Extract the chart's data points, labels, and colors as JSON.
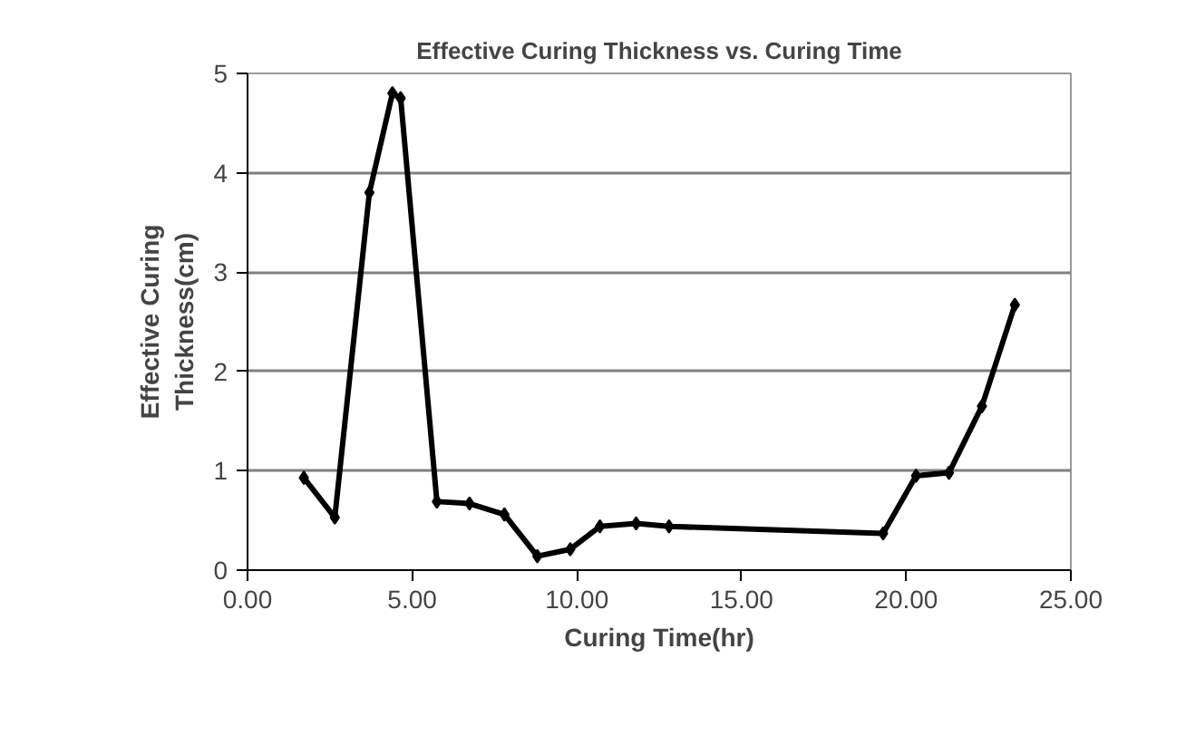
{
  "chart_data": {
    "type": "line",
    "title": "Effective Curing Thickness vs. Curing Time",
    "xlabel": "Curing Time(hr)",
    "ylabel": "Effective Curing Thickness(cm)",
    "x": [
      1.71,
      2.65,
      3.7,
      4.4,
      4.65,
      5.75,
      6.74,
      7.8,
      8.8,
      9.8,
      10.7,
      11.8,
      12.8,
      19.3,
      20.3,
      21.3,
      22.3,
      23.3
    ],
    "series": [
      {
        "color": "#000000",
        "values": [
          0.93,
          0.53,
          3.8,
          4.8,
          4.75,
          0.69,
          0.67,
          0.56,
          0.14,
          0.21,
          0.44,
          0.47,
          0.44,
          0.37,
          0.95,
          0.98,
          1.65,
          2.67
        ]
      }
    ],
    "xlim": [
      0,
      25
    ],
    "xticks": [
      {
        "value": 0,
        "label": "0.00"
      },
      {
        "value": 5,
        "label": "5.00"
      },
      {
        "value": 10,
        "label": "10.00"
      },
      {
        "value": 15,
        "label": "15.00"
      },
      {
        "value": 20,
        "label": "20.00"
      },
      {
        "value": 25,
        "label": "25.00"
      }
    ],
    "ylim": [
      0,
      5
    ],
    "yticks": [
      0,
      1,
      2,
      3,
      4,
      5
    ],
    "grid": "y",
    "marker": "diamond",
    "line_style": "solid"
  }
}
